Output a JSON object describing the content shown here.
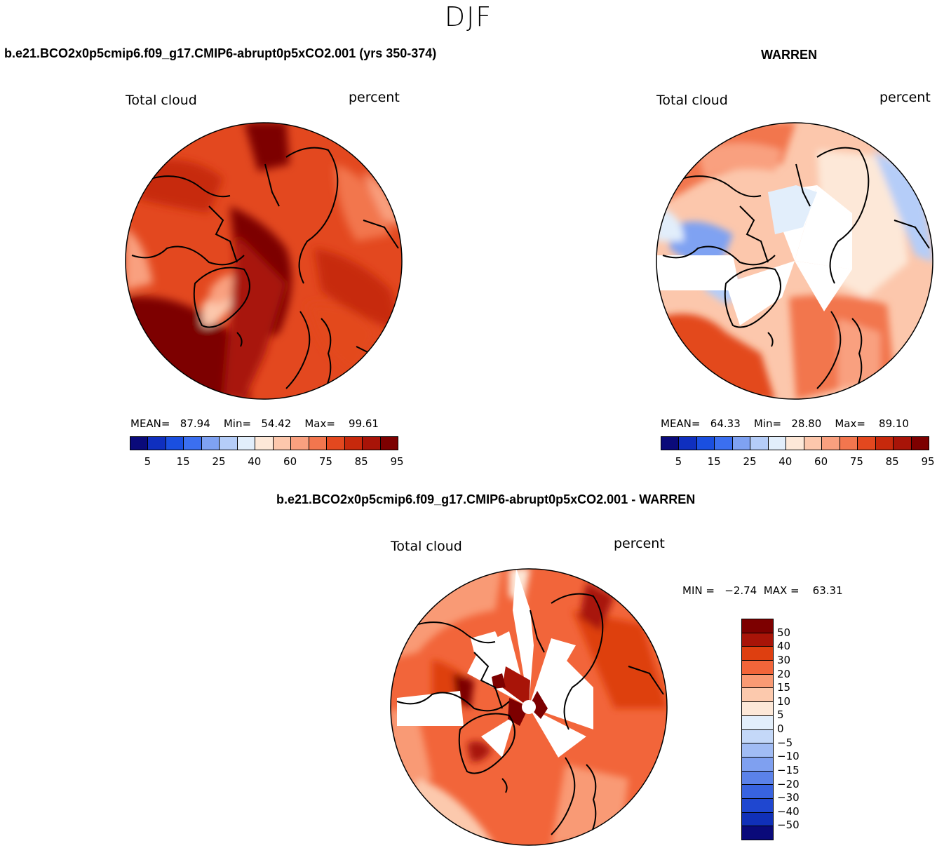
{
  "figure": {
    "season": "DJF"
  },
  "panel_1": {
    "title": "b.e21.BCO2x0p5cmip6.f09_g17.CMIP6-abrupt0p5xCO2.001 (yrs 350-374)",
    "variable": "Total cloud",
    "units": "percent",
    "stats": {
      "mean_label": "MEAN=",
      "mean": "87.94",
      "min_label": "Min=",
      "min": "54.42",
      "max_label": "Max=",
      "max": "99.61"
    }
  },
  "panel_2": {
    "title": "WARREN",
    "variable": "Total cloud",
    "units": "percent",
    "stats": {
      "mean_label": "MEAN=",
      "mean": "64.33",
      "min_label": "Min=",
      "min": "28.80",
      "max_label": "Max=",
      "max": "89.10"
    }
  },
  "panel_3": {
    "title": "b.e21.BCO2x0p5cmip6.f09_g17.CMIP6-abrupt0p5xCO2.001 - WARREN",
    "variable": "Total cloud",
    "units": "percent",
    "stats": {
      "min_label": "MIN =",
      "min": "−2.74",
      "max_label": "MAX =",
      "max": "63.31"
    }
  },
  "colorbar_abs": {
    "colors": [
      "#0a0a7a",
      "#0f2fbf",
      "#1a4fe0",
      "#3b6ff0",
      "#7fa2f2",
      "#b5cdf8",
      "#e2eefb",
      "#fde8d8",
      "#fcc7ac",
      "#f9a07f",
      "#f2764e",
      "#e3481f",
      "#c7290c",
      "#a81408",
      "#7d0000"
    ],
    "ticks": [
      "5",
      "15",
      "25",
      "40",
      "60",
      "75",
      "85",
      "95"
    ]
  },
  "colorbar_diff": {
    "colors": [
      "#7d0000",
      "#a81408",
      "#de3f10",
      "#f2653a",
      "#f99a74",
      "#fcc9ad",
      "#fde8d8",
      "#e2eefb",
      "#c4d8f8",
      "#a1bcf4",
      "#7fa0f0",
      "#5b82ea",
      "#3863e0",
      "#1f47d0",
      "#1030b8",
      "#0a0a7a"
    ],
    "ticks": [
      "50",
      "40",
      "30",
      "20",
      "15",
      "10",
      "5",
      "0",
      "−5",
      "−10",
      "−15",
      "−20",
      "−30",
      "−40",
      "−50"
    ]
  }
}
